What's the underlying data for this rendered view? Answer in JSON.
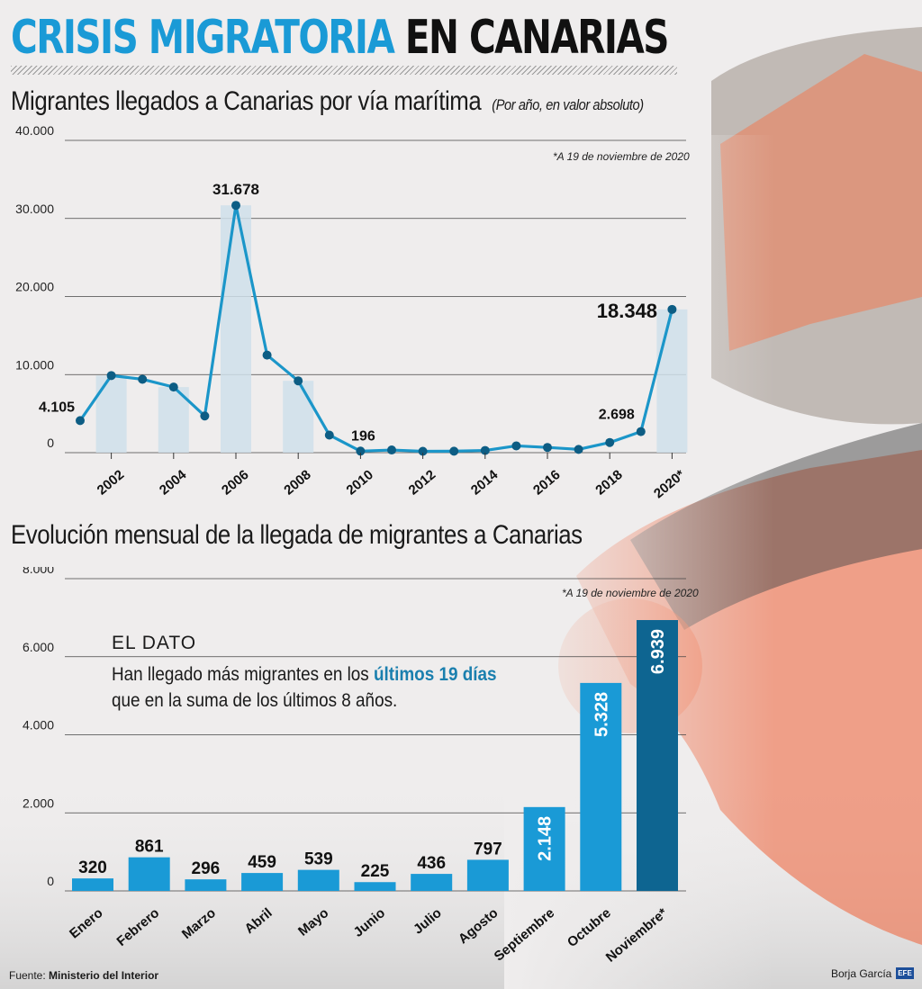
{
  "title": {
    "part1": "CRISIS MIGRATORIA",
    "part2": "EN CANARIAS"
  },
  "chart1": {
    "subtitle": "Migrantes llegados a Canarias por vía marítima",
    "subtitle_note": "(Por año, en valor absoluto)",
    "note": "*A 19 de noviembre de 2020"
  },
  "chart2": {
    "subtitle": "Evolución mensual de la llegada de migrantes a Canarias",
    "note": "*A 19 de noviembre de 2020",
    "dato_title": "EL DATO",
    "dato_line1_a": "Han llegado más migrantes en los ",
    "dato_line1_b": "últimos 19 días",
    "dato_line2": "que en la suma de los últimos 8 años."
  },
  "footer": {
    "source_label": "Fuente:",
    "source": "Ministerio del Interior",
    "author": "Borja García",
    "logo": "EFE"
  },
  "colors": {
    "accent": "#1a9ad6",
    "line": "#1b96c9",
    "marker": "#0d5d84",
    "bar": "#1a9ad6",
    "bar_highlight": "#0e6591",
    "area_fill": "#cfdfea"
  },
  "chart_data": [
    {
      "type": "line",
      "x": [
        2001,
        2002,
        2003,
        2004,
        2005,
        2006,
        2007,
        2008,
        2009,
        2010,
        2011,
        2012,
        2013,
        2014,
        2015,
        2016,
        2017,
        2018,
        2019,
        2020
      ],
      "values": [
        4105,
        9875,
        9400,
        8400,
        4700,
        31678,
        12500,
        9200,
        2250,
        196,
        340,
        170,
        190,
        280,
        870,
        670,
        420,
        1300,
        2698,
        18348
      ],
      "value_labels": {
        "2001": "4.105",
        "2006": "31.678",
        "2010": "196",
        "2019": "2.698",
        "2020": "18.348"
      },
      "shaded_bars_years": [
        2002,
        2004,
        2006,
        2008,
        2020
      ],
      "tick_labels": [
        "2002",
        "2004",
        "2006",
        "2008",
        "2010",
        "2012",
        "2014",
        "2016",
        "2018",
        "2020*"
      ],
      "tick_years": [
        2002,
        2004,
        2006,
        2008,
        2010,
        2012,
        2014,
        2016,
        2018,
        2020
      ],
      "yticks": [
        "0",
        "10.000",
        "20.000",
        "30.000",
        "40.000"
      ],
      "ylim": [
        0,
        40000
      ],
      "grid": true
    },
    {
      "type": "bar",
      "categories": [
        "Enero",
        "Febrero",
        "Marzo",
        "Abril",
        "Mayo",
        "Junio",
        "Julio",
        "Agosto",
        "Septiembre",
        "Octubre",
        "Noviembre*"
      ],
      "values": [
        320,
        861,
        296,
        459,
        539,
        225,
        436,
        797,
        2148,
        5328,
        6939
      ],
      "value_labels": [
        "320",
        "861",
        "296",
        "459",
        "539",
        "225",
        "436",
        "797",
        "2.148",
        "5.328",
        "6.939"
      ],
      "yticks": [
        "0",
        "2.000",
        "4.000",
        "6.000",
        "8.000"
      ],
      "ylim": [
        0,
        8000
      ],
      "grid": true
    }
  ]
}
